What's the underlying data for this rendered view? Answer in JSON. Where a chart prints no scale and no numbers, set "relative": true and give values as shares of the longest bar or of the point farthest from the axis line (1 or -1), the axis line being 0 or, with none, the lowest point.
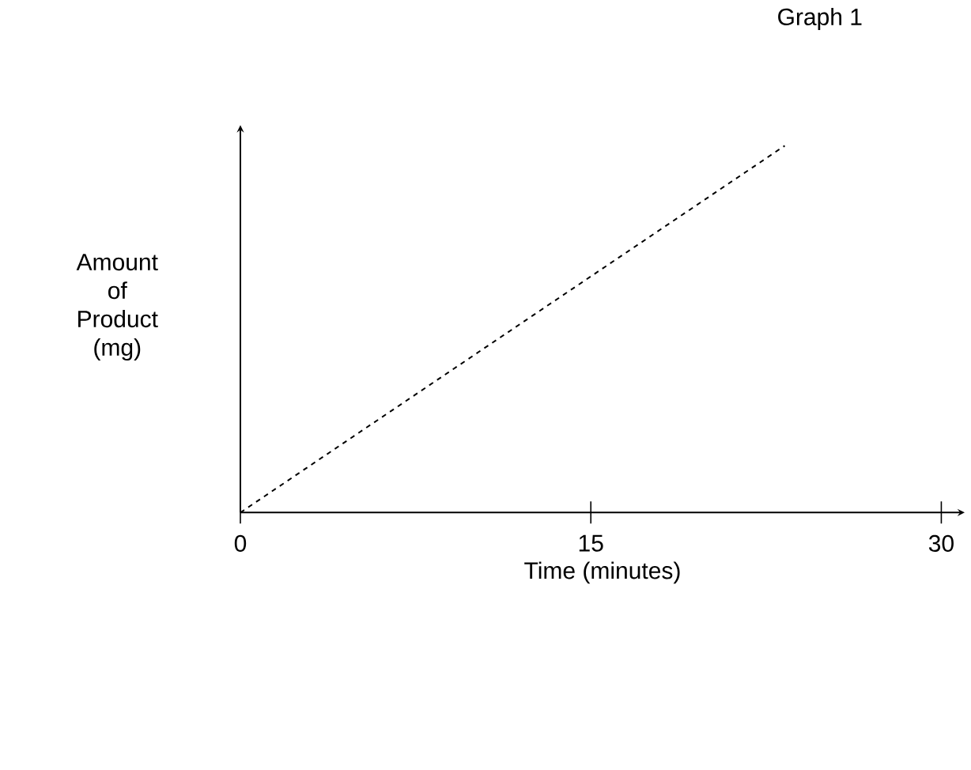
{
  "chart_data": {
    "type": "line",
    "title": "Graph 1",
    "xlabel": "Time (minutes)",
    "ylabel": "Amount of Product (mg)",
    "relative": true,
    "xlim": [
      0,
      31
    ],
    "xticks": [
      0,
      15,
      30
    ],
    "line_style": "dashed",
    "marker": "none",
    "series": [
      {
        "color": "#000000",
        "x": [
          0,
          23.3
        ],
        "values": [
          0,
          1
        ]
      }
    ]
  }
}
